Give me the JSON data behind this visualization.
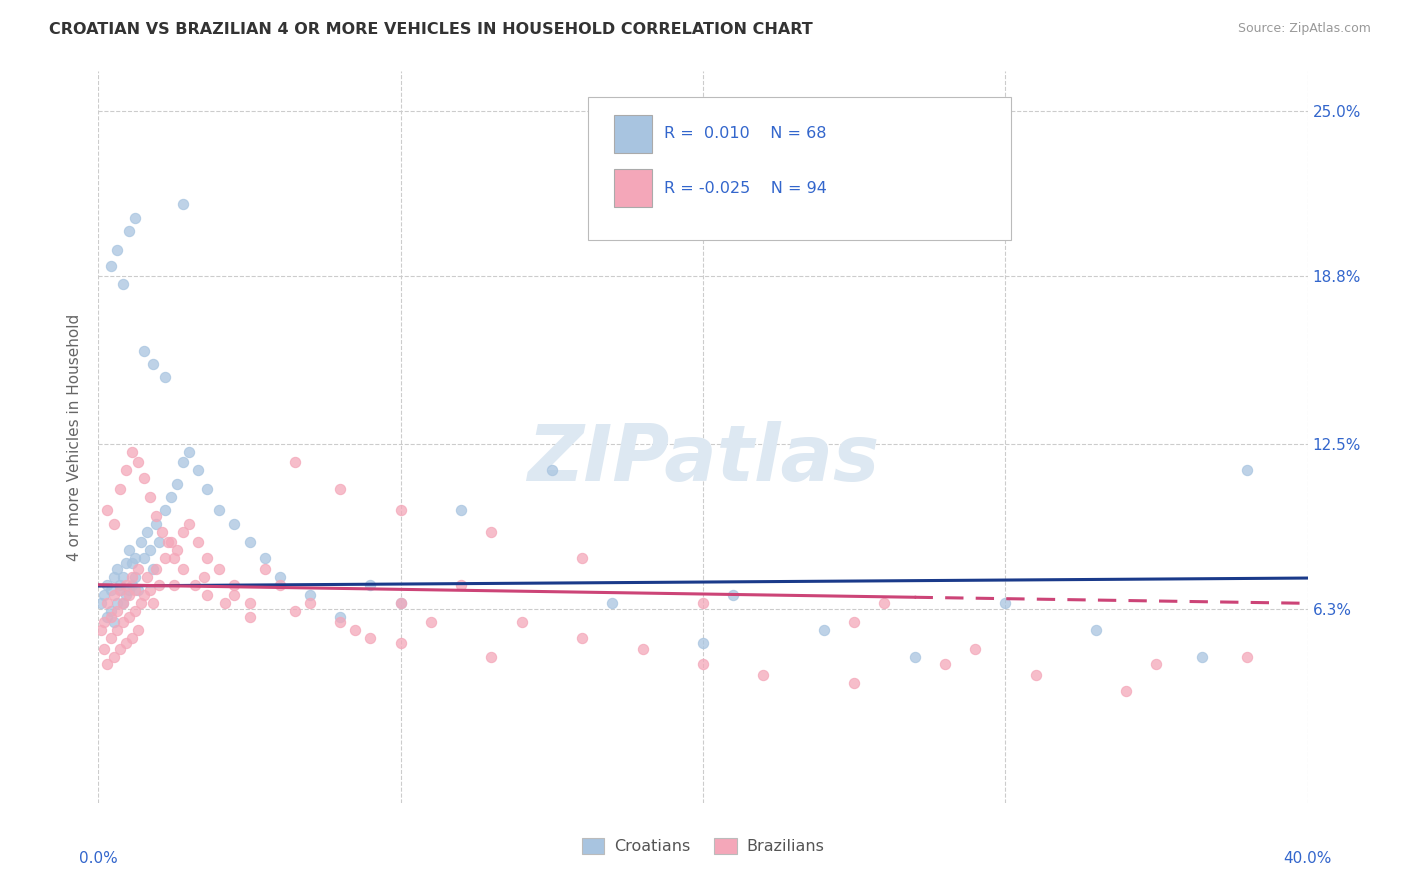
{
  "title": "CROATIAN VS BRAZILIAN 4 OR MORE VEHICLES IN HOUSEHOLD CORRELATION CHART",
  "source": "Source: ZipAtlas.com",
  "ylabel": "4 or more Vehicles in Household",
  "xmin": 0.0,
  "xmax": 0.4,
  "ymin": -0.01,
  "ymax": 0.265,
  "yticks": [
    0.063,
    0.125,
    0.188,
    0.25
  ],
  "ytick_labels": [
    "6.3%",
    "12.5%",
    "18.8%",
    "25.0%"
  ],
  "xticks": [
    0.0,
    0.1,
    0.2,
    0.3,
    0.4
  ],
  "xtick_labels": [
    "0.0%",
    "",
    "",
    "",
    "40.0%"
  ],
  "grid_color": "#cccccc",
  "background_color": "#ffffff",
  "croatian_color": "#a8c4e0",
  "brazilian_color": "#f4a7b9",
  "croatian_line_color": "#1a3a8a",
  "brazilian_line_color": "#cc4477",
  "scatter_alpha": 0.75,
  "scatter_size": 55,
  "croatian_line_y0": 0.0715,
  "croatian_line_y1": 0.0745,
  "brazilian_line_y0": 0.072,
  "brazilian_line_y1": 0.065,
  "croatian_x": [
    0.001,
    0.002,
    0.003,
    0.003,
    0.004,
    0.004,
    0.005,
    0.005,
    0.006,
    0.006,
    0.007,
    0.007,
    0.008,
    0.008,
    0.009,
    0.009,
    0.01,
    0.01,
    0.011,
    0.011,
    0.012,
    0.012,
    0.013,
    0.014,
    0.015,
    0.016,
    0.017,
    0.018,
    0.019,
    0.02,
    0.022,
    0.024,
    0.026,
    0.028,
    0.03,
    0.033,
    0.036,
    0.04,
    0.045,
    0.05,
    0.055,
    0.06,
    0.07,
    0.08,
    0.09,
    0.1,
    0.12,
    0.15,
    0.17,
    0.2,
    0.21,
    0.24,
    0.27,
    0.3,
    0.33,
    0.365,
    0.38,
    0.004,
    0.006,
    0.008,
    0.01,
    0.012,
    0.015,
    0.018,
    0.022,
    0.028
  ],
  "croatian_y": [
    0.065,
    0.068,
    0.06,
    0.072,
    0.062,
    0.07,
    0.058,
    0.075,
    0.065,
    0.078,
    0.07,
    0.072,
    0.065,
    0.075,
    0.068,
    0.08,
    0.07,
    0.085,
    0.072,
    0.08,
    0.075,
    0.082,
    0.07,
    0.088,
    0.082,
    0.092,
    0.085,
    0.078,
    0.095,
    0.088,
    0.1,
    0.105,
    0.11,
    0.118,
    0.122,
    0.115,
    0.108,
    0.1,
    0.095,
    0.088,
    0.082,
    0.075,
    0.068,
    0.06,
    0.072,
    0.065,
    0.1,
    0.115,
    0.065,
    0.05,
    0.068,
    0.055,
    0.045,
    0.065,
    0.055,
    0.045,
    0.115,
    0.192,
    0.198,
    0.185,
    0.205,
    0.21,
    0.16,
    0.155,
    0.15,
    0.215
  ],
  "brazilian_x": [
    0.001,
    0.002,
    0.002,
    0.003,
    0.003,
    0.004,
    0.004,
    0.005,
    0.005,
    0.006,
    0.006,
    0.007,
    0.007,
    0.008,
    0.008,
    0.009,
    0.009,
    0.01,
    0.01,
    0.011,
    0.011,
    0.012,
    0.012,
    0.013,
    0.013,
    0.014,
    0.015,
    0.016,
    0.017,
    0.018,
    0.019,
    0.02,
    0.022,
    0.024,
    0.026,
    0.028,
    0.03,
    0.033,
    0.036,
    0.04,
    0.045,
    0.05,
    0.055,
    0.06,
    0.07,
    0.08,
    0.09,
    0.1,
    0.11,
    0.12,
    0.14,
    0.16,
    0.18,
    0.2,
    0.22,
    0.25,
    0.28,
    0.31,
    0.34,
    0.003,
    0.005,
    0.007,
    0.009,
    0.011,
    0.013,
    0.015,
    0.017,
    0.019,
    0.021,
    0.023,
    0.025,
    0.028,
    0.032,
    0.036,
    0.042,
    0.05,
    0.065,
    0.08,
    0.1,
    0.13,
    0.16,
    0.2,
    0.25,
    0.29,
    0.35,
    0.38,
    0.025,
    0.035,
    0.045,
    0.065,
    0.085,
    0.1,
    0.13,
    0.26
  ],
  "brazilian_y": [
    0.055,
    0.048,
    0.058,
    0.042,
    0.065,
    0.052,
    0.06,
    0.045,
    0.068,
    0.055,
    0.062,
    0.048,
    0.07,
    0.058,
    0.065,
    0.05,
    0.072,
    0.06,
    0.068,
    0.052,
    0.075,
    0.062,
    0.07,
    0.055,
    0.078,
    0.065,
    0.068,
    0.075,
    0.07,
    0.065,
    0.078,
    0.072,
    0.082,
    0.088,
    0.085,
    0.092,
    0.095,
    0.088,
    0.082,
    0.078,
    0.072,
    0.065,
    0.078,
    0.072,
    0.065,
    0.058,
    0.052,
    0.065,
    0.058,
    0.072,
    0.058,
    0.052,
    0.048,
    0.042,
    0.038,
    0.035,
    0.042,
    0.038,
    0.032,
    0.1,
    0.095,
    0.108,
    0.115,
    0.122,
    0.118,
    0.112,
    0.105,
    0.098,
    0.092,
    0.088,
    0.082,
    0.078,
    0.072,
    0.068,
    0.065,
    0.06,
    0.118,
    0.108,
    0.1,
    0.092,
    0.082,
    0.065,
    0.058,
    0.048,
    0.042,
    0.045,
    0.072,
    0.075,
    0.068,
    0.062,
    0.055,
    0.05,
    0.045,
    0.065
  ]
}
